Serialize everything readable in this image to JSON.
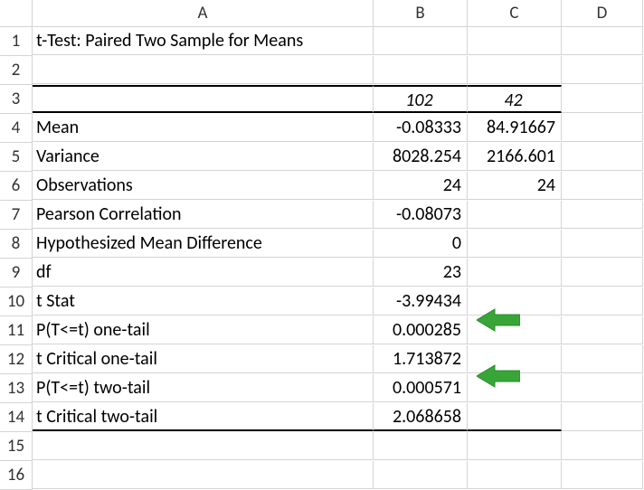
{
  "columns": [
    "A",
    "B",
    "C",
    "D"
  ],
  "row_numbers": [
    "1",
    "2",
    "3",
    "4",
    "5",
    "6",
    "7",
    "8",
    "9",
    "10",
    "11",
    "12",
    "13",
    "14",
    "15",
    "16"
  ],
  "title": "t-Test: Paired Two Sample for Means",
  "header_row": {
    "b": "102",
    "c": "42"
  },
  "rows": [
    {
      "label": "Mean",
      "b": "-0.08333",
      "c": "84.91667"
    },
    {
      "label": "Variance",
      "b": "8028.254",
      "c": "2166.601"
    },
    {
      "label": "Observations",
      "b": "24",
      "c": "24"
    },
    {
      "label": "Pearson Correlation",
      "b": "-0.08073",
      "c": ""
    },
    {
      "label": "Hypothesized Mean Difference",
      "b": "0",
      "c": ""
    },
    {
      "label": "df",
      "b": "23",
      "c": ""
    },
    {
      "label": "t Stat",
      "b": "-3.99434",
      "c": ""
    },
    {
      "label": "P(T<=t) one-tail",
      "b": "0.000285",
      "c": ""
    },
    {
      "label": "t Critical one-tail",
      "b": "1.713872",
      "c": ""
    },
    {
      "label": "P(T<=t) two-tail",
      "b": "0.000571",
      "c": ""
    },
    {
      "label": "t Critical two-tail",
      "b": "2.068658",
      "c": ""
    }
  ],
  "arrow_color": "#37a637",
  "arrow_stroke": "#2a8a2a",
  "grid_color": "#d4d4d4",
  "arrows": [
    {
      "row": 11
    },
    {
      "row": 13
    }
  ]
}
